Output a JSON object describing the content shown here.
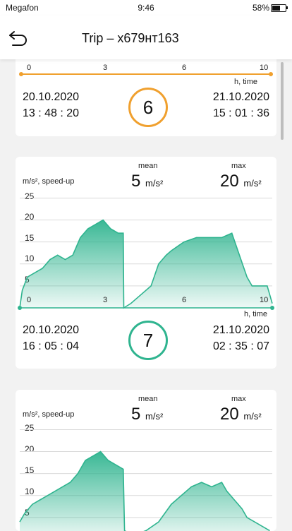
{
  "status_bar": {
    "carrier": "Megafon",
    "time": "9:46",
    "battery": "58%"
  },
  "header": {
    "title": "Trip – x679нт163"
  },
  "colors": {
    "accent_orange": "#f0a02e",
    "accent_teal": "#2fb48f"
  },
  "trips": [
    {
      "number": "6",
      "start_date": "20.10.2020",
      "start_time": "13 : 48 : 20",
      "end_date": "21.10.2020",
      "end_time": "15 : 01 : 36",
      "time_axis": {
        "ticks": [
          "0",
          "3",
          "6",
          "10"
        ],
        "label": "h, time"
      }
    },
    {
      "number": "7",
      "mean_label": "mean",
      "max_label": "max",
      "mean_value": "5",
      "max_value": "20",
      "unit": "m/s²",
      "y_label": "m/s², speed-up",
      "y_ticks": [
        "25",
        "20",
        "15",
        "10",
        "5"
      ],
      "start_date": "20.10.2020",
      "start_time": "16 : 05 : 04",
      "end_date": "21.10.2020",
      "end_time": "02 : 35 : 07",
      "time_axis": {
        "ticks": [
          "0",
          "3",
          "6",
          "10"
        ],
        "label": "h, time"
      }
    },
    {
      "mean_label": "mean",
      "max_label": "max",
      "mean_value": "5",
      "max_value": "20",
      "unit": "m/s²",
      "y_label": "m/s², speed-up",
      "y_ticks": [
        "25",
        "20",
        "15",
        "10",
        "5"
      ]
    }
  ],
  "chart_data": [
    {
      "type": "area",
      "title": "",
      "xlabel": "h, time",
      "ylabel": "m/s², speed-up",
      "xlim": [
        0,
        10
      ],
      "ylim": [
        0,
        27
      ],
      "x_ticks": [
        0,
        3,
        6,
        10
      ],
      "y_ticks": [
        5,
        10,
        15,
        20,
        25
      ],
      "x": [
        0,
        0.1,
        0.3,
        0.6,
        0.9,
        1.2,
        1.5,
        1.8,
        2.1,
        2.4,
        2.7,
        3.0,
        3.3,
        3.6,
        3.9,
        4.1,
        4.12,
        4.4,
        4.8,
        5.2,
        5.5,
        5.8,
        6.0,
        6.5,
        7.0,
        7.5,
        8.0,
        8.4,
        8.7,
        9.0,
        9.2,
        9.4,
        9.6,
        9.8,
        10.0
      ],
      "y": [
        0,
        4,
        7,
        8,
        9,
        11,
        12,
        11,
        12,
        16,
        18,
        19,
        20,
        18,
        17,
        17,
        0,
        1,
        3,
        5,
        10,
        12,
        13,
        15,
        16,
        16,
        16,
        17,
        12,
        7,
        5,
        5,
        5,
        5,
        1
      ]
    },
    {
      "type": "area",
      "title": "",
      "xlabel": "",
      "ylabel": "m/s², speed-up",
      "xlim": [
        0,
        10
      ],
      "ylim": [
        0,
        27
      ],
      "y_ticks": [
        5,
        10,
        15,
        20,
        25
      ],
      "x": [
        0,
        0.2,
        0.5,
        0.8,
        1.1,
        1.4,
        1.7,
        2.0,
        2.3,
        2.6,
        2.9,
        3.2,
        3.5,
        3.8,
        4.1,
        4.15,
        4.5,
        5.0,
        5.5,
        6.0,
        6.4,
        6.8,
        7.2,
        7.6,
        8.0,
        8.2,
        8.5,
        8.8,
        9.0,
        9.3,
        9.6,
        9.9
      ],
      "y": [
        4,
        6,
        8,
        9,
        10,
        11,
        12,
        13,
        15,
        18,
        19,
        20,
        18,
        17,
        16,
        2,
        1,
        2,
        4,
        8,
        10,
        12,
        13,
        12,
        13,
        11,
        9,
        7,
        5,
        4,
        3,
        2
      ]
    }
  ]
}
